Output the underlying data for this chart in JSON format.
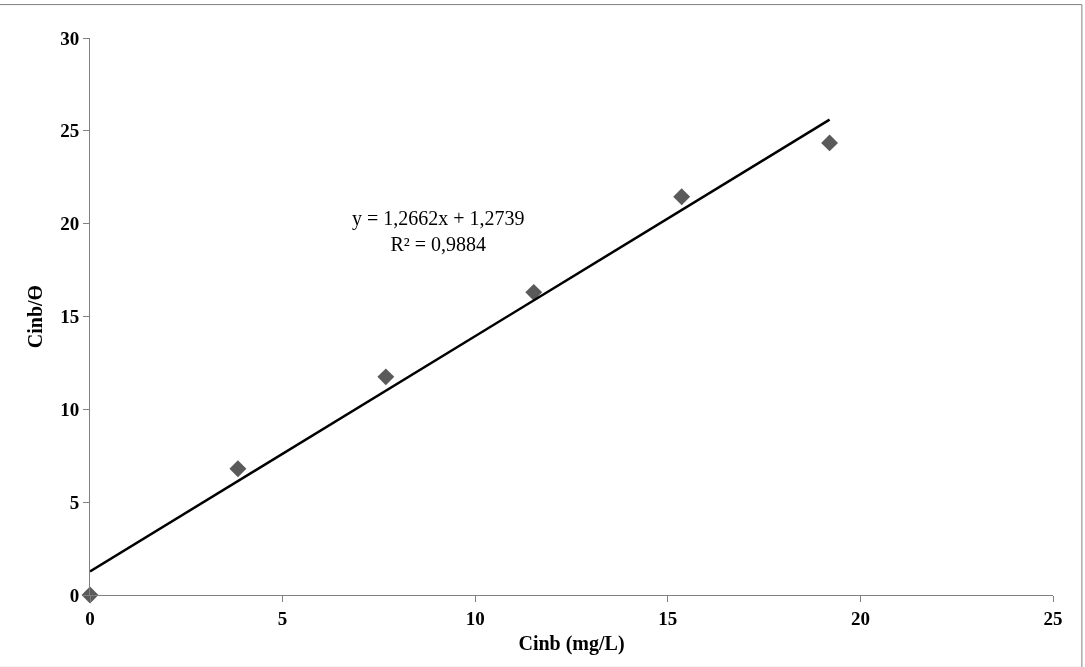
{
  "chart_data": {
    "type": "scatter",
    "xlabel": "Cinb (mg/L)",
    "ylabel": "Cinb/ϴ",
    "x": [
      0,
      3.84,
      7.68,
      11.52,
      15.36,
      19.2
    ],
    "series": [
      {
        "color": "#5a5a5a",
        "marker": "diamond",
        "values": [
          0,
          6.8,
          11.75,
          16.3,
          21.45,
          24.35
        ]
      },
      {
        "type": "line",
        "color": "#000000",
        "line_style": "solid",
        "x": [
          0,
          19.2
        ],
        "values": [
          1.27,
          25.6
        ]
      }
    ],
    "annotations": [
      "y = 1,2662x + 1,2739",
      "R² = 0,9884"
    ],
    "xlim": [
      0,
      25
    ],
    "xticks": [
      0,
      5,
      10,
      15,
      20,
      25
    ],
    "ylim": [
      0,
      30
    ],
    "yticks": [
      0,
      5,
      10,
      15,
      20,
      25,
      30
    ],
    "grid": false,
    "legend": false
  }
}
